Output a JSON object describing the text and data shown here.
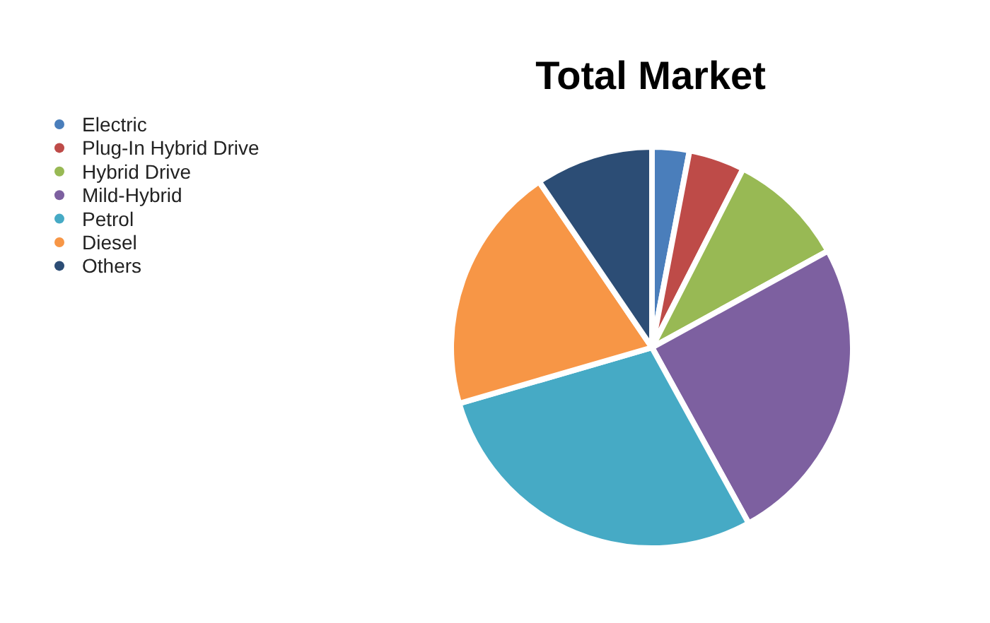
{
  "chart_data": {
    "type": "pie",
    "title": "Total Market",
    "categories": [
      "Electric",
      "Plug-In Hybrid Drive",
      "Hybrid Drive",
      "Mild-Hybrid",
      "Petrol",
      "Diesel",
      "Others"
    ],
    "values": [
      3,
      4.5,
      9.5,
      25,
      28.5,
      20,
      9.5
    ],
    "colors": [
      "#4a7ebb",
      "#be4b48",
      "#98b954",
      "#7d60a0",
      "#46aac5",
      "#f79646",
      "#2c4d75"
    ],
    "legend": "top left"
  }
}
